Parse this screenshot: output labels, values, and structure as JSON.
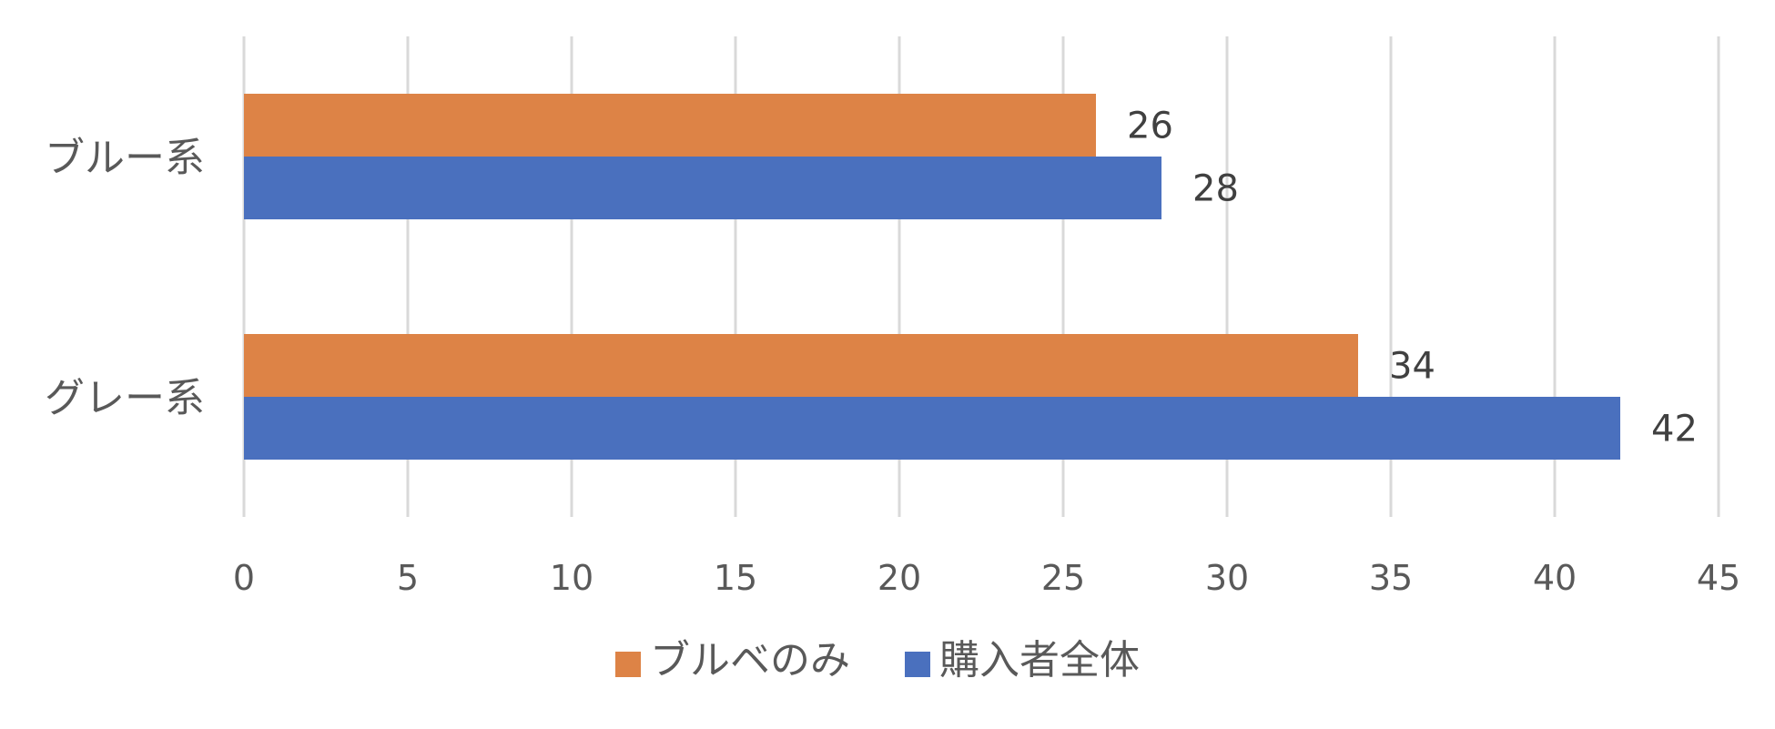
{
  "chart_data": {
    "type": "bar",
    "orientation": "horizontal",
    "categories": [
      "ブルー系",
      "グレー系"
    ],
    "series": [
      {
        "name": "ブルベのみ",
        "color": "#DD8346",
        "values": [
          26,
          34
        ]
      },
      {
        "name": "購入者全体",
        "color": "#4A70BE",
        "values": [
          28,
          42
        ]
      }
    ],
    "xlim": [
      0,
      45
    ],
    "xticks": [
      0,
      5,
      10,
      15,
      20,
      25,
      30,
      35,
      40,
      45
    ],
    "grid": true,
    "data_labels": true,
    "legend_position": "bottom",
    "title": "",
    "xlabel": "",
    "ylabel": ""
  }
}
